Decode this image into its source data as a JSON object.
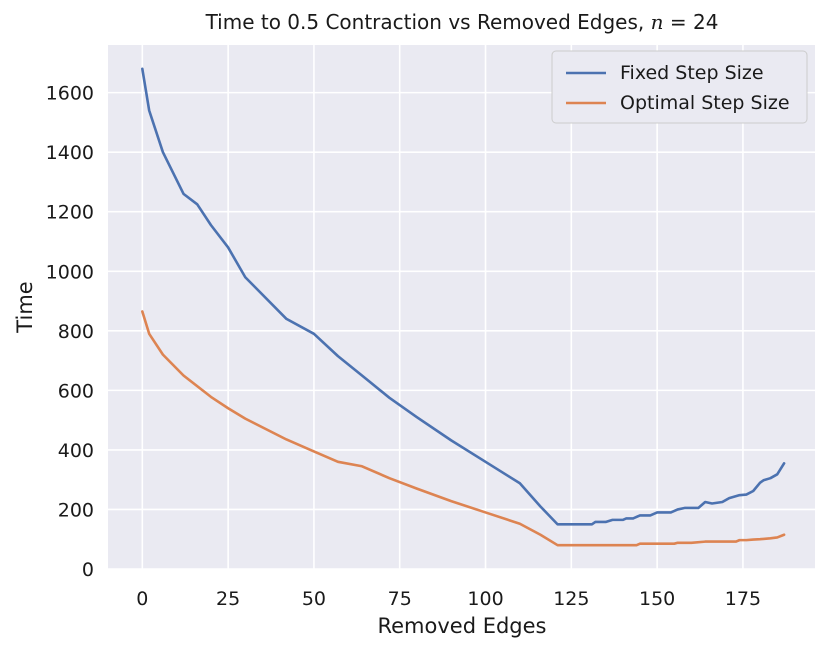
{
  "chart_data": {
    "type": "line",
    "title_prefix": "Time to 0.5 Contraction vs Removed Edges, ",
    "title_var": "n",
    "title_suffix": " = 24",
    "xlabel": "Removed Edges",
    "ylabel": "Time",
    "xlim": [
      -10,
      196
    ],
    "ylim": [
      0,
      1760
    ],
    "xticks": [
      0,
      25,
      50,
      75,
      100,
      125,
      150,
      175
    ],
    "yticks": [
      0,
      200,
      400,
      600,
      800,
      1000,
      1200,
      1400,
      1600
    ],
    "grid": true,
    "legend_position": "top-right",
    "series": [
      {
        "name": "Fixed Step Size",
        "color": "#4c72b0",
        "points": [
          [
            0,
            1680
          ],
          [
            2,
            1540
          ],
          [
            6,
            1400
          ],
          [
            12,
            1260
          ],
          [
            16,
            1225
          ],
          [
            20,
            1155
          ],
          [
            25,
            1080
          ],
          [
            30,
            980
          ],
          [
            42,
            840
          ],
          [
            50,
            790
          ],
          [
            57,
            715
          ],
          [
            64,
            650
          ],
          [
            72,
            575
          ],
          [
            80,
            510
          ],
          [
            90,
            432
          ],
          [
            100,
            360
          ],
          [
            110,
            288
          ],
          [
            116,
            210
          ],
          [
            121,
            150
          ],
          [
            125,
            150
          ],
          [
            128,
            150
          ],
          [
            131,
            150
          ],
          [
            132,
            158
          ],
          [
            135,
            158
          ],
          [
            137,
            165
          ],
          [
            140,
            165
          ],
          [
            141,
            170
          ],
          [
            143,
            170
          ],
          [
            145,
            180
          ],
          [
            148,
            180
          ],
          [
            150,
            190
          ],
          [
            154,
            190
          ],
          [
            156,
            200
          ],
          [
            158,
            205
          ],
          [
            162,
            205
          ],
          [
            164,
            225
          ],
          [
            166,
            220
          ],
          [
            169,
            225
          ],
          [
            171,
            238
          ],
          [
            174,
            248
          ],
          [
            176,
            250
          ],
          [
            178,
            262
          ],
          [
            180,
            290
          ],
          [
            181,
            298
          ],
          [
            183,
            305
          ],
          [
            185,
            318
          ],
          [
            187,
            355
          ]
        ]
      },
      {
        "name": "Optimal Step Size",
        "color": "#dd8452",
        "points": [
          [
            0,
            865
          ],
          [
            2,
            790
          ],
          [
            6,
            720
          ],
          [
            12,
            650
          ],
          [
            20,
            578
          ],
          [
            25,
            540
          ],
          [
            30,
            505
          ],
          [
            42,
            435
          ],
          [
            50,
            395
          ],
          [
            57,
            360
          ],
          [
            64,
            345
          ],
          [
            72,
            305
          ],
          [
            80,
            270
          ],
          [
            90,
            228
          ],
          [
            100,
            190
          ],
          [
            110,
            152
          ],
          [
            116,
            115
          ],
          [
            121,
            80
          ],
          [
            125,
            80
          ],
          [
            130,
            80
          ],
          [
            135,
            80
          ],
          [
            140,
            80
          ],
          [
            144,
            80
          ],
          [
            145,
            85
          ],
          [
            150,
            85
          ],
          [
            155,
            85
          ],
          [
            156,
            88
          ],
          [
            160,
            88
          ],
          [
            164,
            92
          ],
          [
            168,
            92
          ],
          [
            173,
            92
          ],
          [
            174,
            97
          ],
          [
            176,
            97
          ],
          [
            178,
            99
          ],
          [
            180,
            100
          ],
          [
            183,
            103
          ],
          [
            185,
            106
          ],
          [
            187,
            115
          ]
        ]
      }
    ]
  }
}
